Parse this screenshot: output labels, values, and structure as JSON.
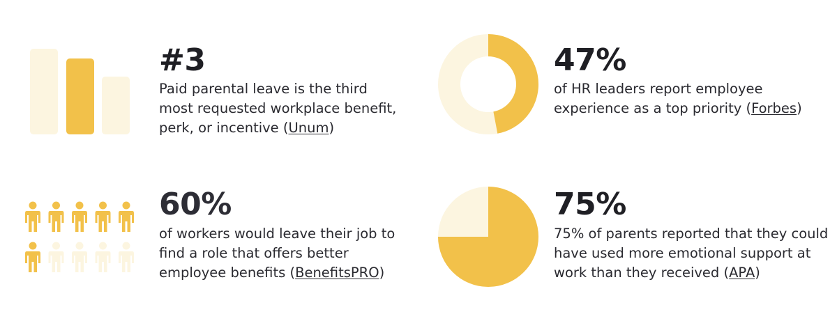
{
  "colors": {
    "accent": "#F2C14A",
    "light": "#FCF5E0",
    "text": "#1F1F24"
  },
  "stats": [
    {
      "value": "#3",
      "text_before": "Paid parental leave is the third most requested workplace benefit, perk, or incentive (",
      "source": "Unum",
      "text_after": ")",
      "icon": "bar-chart-icon",
      "bars": [
        0,
        0,
        1
      ]
    },
    {
      "value": "47%",
      "text_before": "of HR leaders report employee experience as a top priority (",
      "source": "Forbes",
      "text_after": ")",
      "icon": "donut-chart-icon",
      "fraction": 0.47
    },
    {
      "value": "60%",
      "text_before": "of workers would leave their job to find a role that offers better employee benefits (",
      "source": "BenefitsPRO",
      "text_after": ")",
      "icon": "people-icon",
      "highlighted_people": 6,
      "total_people": 10
    },
    {
      "value": "75%",
      "text_before": "75% of parents reported that they could have used more emotional support at work than they received (",
      "source": "APA",
      "text_after": ")",
      "icon": "pie-chart-icon",
      "fraction": 0.75
    }
  ]
}
